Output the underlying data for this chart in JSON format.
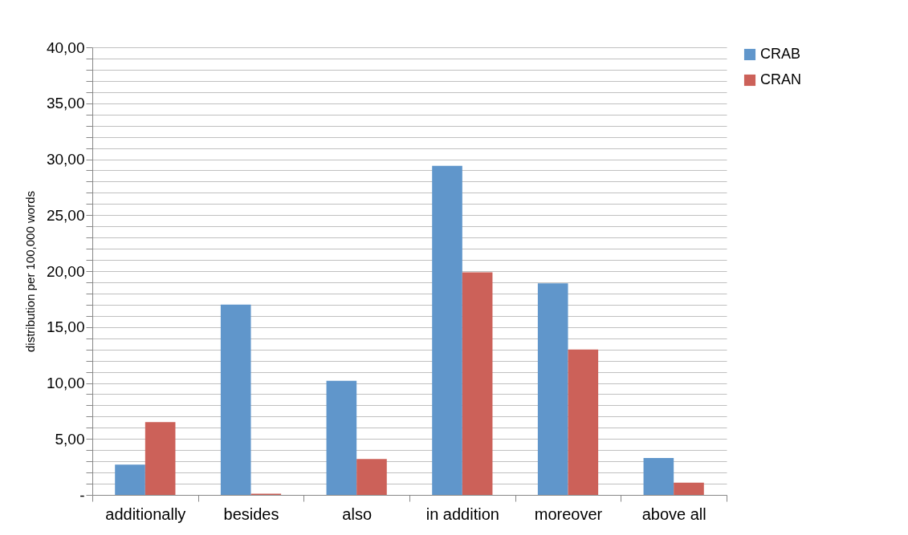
{
  "chart_data": {
    "type": "bar",
    "ylabel": "distribution per  100,000 words",
    "categories": [
      "additionally",
      "besides",
      "also",
      "in addition",
      "moreover",
      "above all"
    ],
    "series": [
      {
        "name": "CRAB",
        "color": "#6096cb",
        "values": [
          2.7,
          17.0,
          10.2,
          29.4,
          18.9,
          3.3
        ]
      },
      {
        "name": "CRAN",
        "color": "#cc6159",
        "values": [
          6.5,
          0.1,
          3.2,
          19.9,
          13.0,
          1.1
        ]
      }
    ],
    "ylim": [
      0,
      40
    ],
    "yticks": [
      {
        "value": 0,
        "label": "-"
      },
      {
        "value": 1,
        "label": null
      },
      {
        "value": 2,
        "label": null
      },
      {
        "value": 3,
        "label": null
      },
      {
        "value": 4,
        "label": null
      },
      {
        "value": 5,
        "label": "5,00"
      },
      {
        "value": 6,
        "label": null
      },
      {
        "value": 7,
        "label": null
      },
      {
        "value": 8,
        "label": null
      },
      {
        "value": 9,
        "label": null
      },
      {
        "value": 10,
        "label": "10,00"
      },
      {
        "value": 11,
        "label": null
      },
      {
        "value": 12,
        "label": null
      },
      {
        "value": 13,
        "label": null
      },
      {
        "value": 14,
        "label": null
      },
      {
        "value": 15,
        "label": "15,00"
      },
      {
        "value": 16,
        "label": null
      },
      {
        "value": 17,
        "label": null
      },
      {
        "value": 18,
        "label": null
      },
      {
        "value": 19,
        "label": null
      },
      {
        "value": 20,
        "label": "20,00"
      },
      {
        "value": 21,
        "label": null
      },
      {
        "value": 22,
        "label": null
      },
      {
        "value": 23,
        "label": null
      },
      {
        "value": 24,
        "label": null
      },
      {
        "value": 25,
        "label": "25,00"
      },
      {
        "value": 26,
        "label": null
      },
      {
        "value": 27,
        "label": null
      },
      {
        "value": 28,
        "label": null
      },
      {
        "value": 29,
        "label": null
      },
      {
        "value": 30,
        "label": "30,00"
      },
      {
        "value": 31,
        "label": null
      },
      {
        "value": 32,
        "label": null
      },
      {
        "value": 33,
        "label": null
      },
      {
        "value": 34,
        "label": null
      },
      {
        "value": 35,
        "label": "35,00"
      },
      {
        "value": 36,
        "label": null
      },
      {
        "value": 37,
        "label": null
      },
      {
        "value": 38,
        "label": null
      },
      {
        "value": 39,
        "label": null
      },
      {
        "value": 40,
        "label": "40,00"
      }
    ],
    "grid": "y",
    "legend": "right"
  }
}
